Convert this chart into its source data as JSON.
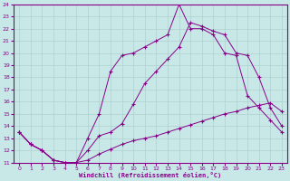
{
  "xlabel": "Windchill (Refroidissement éolien,°C)",
  "bg_color": "#c8e8e8",
  "line_color": "#880088",
  "grid_color": "#b0d0d0",
  "xlim": [
    -0.5,
    23.5
  ],
  "ylim": [
    11,
    24
  ],
  "xticks": [
    0,
    1,
    2,
    3,
    4,
    5,
    6,
    7,
    8,
    9,
    10,
    11,
    12,
    13,
    14,
    15,
    16,
    17,
    18,
    19,
    20,
    21,
    22,
    23
  ],
  "yticks": [
    11,
    12,
    13,
    14,
    15,
    16,
    17,
    18,
    19,
    20,
    21,
    22,
    23,
    24
  ],
  "line1_x": [
    0,
    1,
    2,
    3,
    4,
    5,
    6,
    7,
    8,
    9,
    10,
    11,
    12,
    13,
    14,
    15,
    16,
    17,
    18,
    19,
    20,
    21,
    22,
    23
  ],
  "line1_y": [
    13.5,
    12.5,
    12.0,
    11.2,
    11.0,
    11.0,
    11.2,
    11.7,
    12.1,
    12.5,
    12.8,
    13.0,
    13.2,
    13.5,
    13.8,
    14.1,
    14.4,
    14.7,
    15.0,
    15.2,
    15.5,
    15.7,
    15.9,
    15.2
  ],
  "line2_x": [
    0,
    1,
    2,
    3,
    4,
    5,
    6,
    7,
    8,
    9,
    10,
    11,
    12,
    13,
    14,
    15,
    16,
    17,
    18,
    19,
    20,
    21,
    22,
    23
  ],
  "line2_y": [
    13.5,
    12.5,
    12.0,
    11.2,
    11.0,
    11.0,
    13.0,
    15.0,
    18.5,
    19.8,
    20.0,
    20.5,
    21.0,
    21.5,
    24.0,
    22.0,
    22.0,
    21.5,
    20.0,
    19.8,
    16.5,
    15.5,
    14.5,
    13.5
  ],
  "line3_x": [
    0,
    1,
    2,
    3,
    4,
    5,
    6,
    7,
    8,
    9,
    10,
    11,
    12,
    13,
    14,
    15,
    16,
    17,
    18,
    19,
    20,
    21,
    22,
    23
  ],
  "line3_y": [
    13.5,
    12.5,
    12.0,
    11.2,
    11.0,
    11.0,
    12.0,
    13.2,
    13.5,
    14.2,
    15.8,
    17.5,
    18.5,
    19.5,
    20.5,
    22.5,
    22.2,
    21.8,
    21.5,
    20.0,
    19.8,
    18.0,
    15.5,
    14.0
  ]
}
